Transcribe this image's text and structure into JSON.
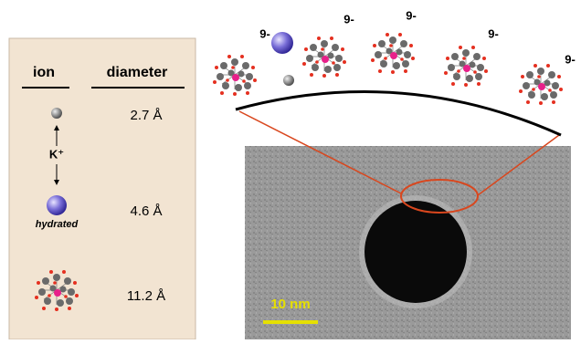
{
  "table": {
    "header": [
      "ion",
      "diameter"
    ],
    "rows": [
      [
        "K⁺",
        "2.7 Å"
      ],
      [
        "hydrated",
        "4.6 Å"
      ],
      [
        "",
        "11.2 Å"
      ]
    ]
  },
  "charge_labels": [
    "9-",
    "9-",
    "9-",
    "9-",
    "9-"
  ],
  "scale_bar": "10 nm"
}
